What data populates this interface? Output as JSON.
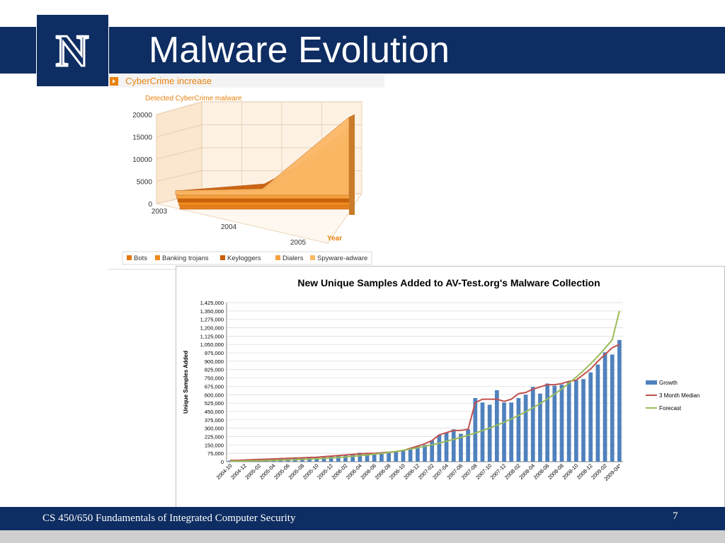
{
  "slide": {
    "title": "Malware Evolution",
    "footer": "CS 450/650 Fundamentals of Integrated Computer Security",
    "page_number": "7",
    "logo_letter": "N",
    "colors": {
      "navy": "#0e2d62",
      "white": "#ffffff",
      "gray": "#cfcfcf"
    }
  },
  "chart_data": [
    {
      "type": "area",
      "header": "CyberCrime increase",
      "title": "Detected CyberCrime malware",
      "xlabel": "Year",
      "ylabel": "",
      "yticks": [
        "20000",
        "15000",
        "10000",
        "5000",
        "0"
      ],
      "ylim": [
        0,
        20000
      ],
      "categories": [
        "2003",
        "2004",
        "2005"
      ],
      "legend_position": "bottom",
      "series": [
        {
          "name": "Bots",
          "color": "#e37a12",
          "values": [
            1500,
            2000,
            9000
          ]
        },
        {
          "name": "Banking trojans",
          "color": "#f08a1e",
          "values": [
            1800,
            2500,
            12500
          ]
        },
        {
          "name": "Keyloggers",
          "color": "#c95e0a",
          "values": [
            2500,
            4000,
            14000
          ]
        },
        {
          "name": "Dialers",
          "color": "#f7a440",
          "values": [
            1200,
            1600,
            15500
          ]
        },
        {
          "name": "Spyware-adware",
          "color": "#fbb866",
          "values": [
            1000,
            1400,
            17000
          ]
        }
      ]
    },
    {
      "type": "bar",
      "title": "New Unique Samples Added  to AV-Test.org's Malware Collection",
      "xlabel": "",
      "ylabel": "Unique  Samples Added",
      "ylim": [
        0,
        1425000
      ],
      "yticks": [
        "1,425,000",
        "1,350,000",
        "1,275,000",
        "1,200,000",
        "1,125,000",
        "1,050,000",
        "975,000",
        "900,000",
        "825,000",
        "750,000",
        "675,000",
        "600,000",
        "525,000",
        "450,000",
        "375,000",
        "300,000",
        "225,000",
        "150,000",
        "75,000",
        "0"
      ],
      "x": [
        "2004-10",
        "2004-11",
        "2004-12",
        "2005-01",
        "2005-02",
        "2005-03",
        "2005-04",
        "2005-05",
        "2005-06",
        "2005-07",
        "2005-08",
        "2005-09",
        "2005-10",
        "2005-11",
        "2005-12",
        "2006-01",
        "2006-02",
        "2006-03",
        "2006-04",
        "2006-05",
        "2006-06",
        "2006-07",
        "2006-08",
        "2006-09",
        "2006-10",
        "2006-11",
        "2006-12",
        "2007-01",
        "2007-02",
        "2007-03",
        "2007-04",
        "2007-05",
        "2007-06",
        "2007-07",
        "2007-08",
        "2007-09",
        "2007-10",
        "2007-11",
        "2007-12",
        "2008-01",
        "2008-02",
        "2008-03",
        "2008-04",
        "2008-05",
        "2008-06",
        "2008-07",
        "2008-08",
        "2008-09",
        "2008-10",
        "2008-11",
        "2008-12",
        "2009-01",
        "2009-02",
        "2009-03",
        "2009-04*"
      ],
      "xtick_labels": [
        "2004-10",
        "2004-12",
        "2005-02",
        "2005-04",
        "2005-06",
        "2005-08",
        "2005-10",
        "2005-12",
        "2006-02",
        "2006-04",
        "2006-06",
        "2006-08",
        "2006-10",
        "2006-12",
        "2007-02",
        "2007-04",
        "2007-06",
        "2007-08",
        "2007-10",
        "2007-12",
        "2008-02",
        "2008-04",
        "2008-06",
        "2008-08",
        "2008-10",
        "2008-12",
        "2009-02",
        "2009-04*"
      ],
      "legend_position": "right",
      "series": [
        {
          "name": "Growth",
          "kind": "bar",
          "color": "#4f81bd",
          "values": [
            10000,
            12000,
            15000,
            18000,
            20000,
            22000,
            25000,
            28000,
            30000,
            32000,
            35000,
            38000,
            40000,
            45000,
            50000,
            55000,
            60000,
            65000,
            80000,
            70000,
            75000,
            80000,
            85000,
            90000,
            100000,
            110000,
            140000,
            150000,
            190000,
            240000,
            260000,
            290000,
            250000,
            290000,
            570000,
            530000,
            510000,
            640000,
            530000,
            530000,
            570000,
            600000,
            670000,
            610000,
            700000,
            680000,
            690000,
            720000,
            730000,
            740000,
            800000,
            870000,
            980000,
            960000,
            1090000
          ]
        },
        {
          "name": "3 Month Median",
          "kind": "line",
          "color": "#c0504d",
          "values": [
            12000,
            12000,
            15000,
            18000,
            20000,
            22000,
            25000,
            28000,
            30000,
            32000,
            35000,
            38000,
            40000,
            45000,
            50000,
            55000,
            60000,
            65000,
            70000,
            75000,
            75000,
            80000,
            85000,
            90000,
            100000,
            120000,
            140000,
            160000,
            190000,
            240000,
            260000,
            280000,
            280000,
            290000,
            530000,
            560000,
            560000,
            560000,
            540000,
            560000,
            610000,
            620000,
            650000,
            670000,
            690000,
            690000,
            700000,
            720000,
            730000,
            780000,
            830000,
            900000,
            960000,
            1020000,
            1050000
          ]
        },
        {
          "name": "Forecast",
          "kind": "line",
          "color": "#9bbb59",
          "values": [
            5000,
            6000,
            7000,
            8000,
            9000,
            10000,
            12000,
            14000,
            16000,
            18000,
            20000,
            23000,
            26000,
            30000,
            34000,
            38000,
            43000,
            48000,
            54000,
            60000,
            67000,
            75000,
            83000,
            92000,
            102000,
            113000,
            125000,
            138000,
            152000,
            167000,
            183000,
            200000,
            218000,
            237000,
            257000,
            279000,
            302000,
            327000,
            354000,
            383000,
            414000,
            447000,
            483000,
            521000,
            562000,
            606000,
            653000,
            703000,
            757000,
            815000,
            877000,
            944000,
            1015000,
            1091000,
            1350000
          ]
        }
      ]
    }
  ]
}
